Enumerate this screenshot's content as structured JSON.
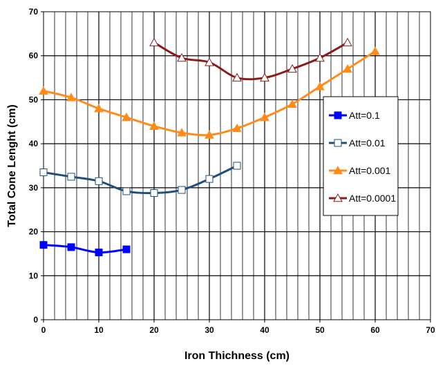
{
  "chart_data": {
    "type": "line",
    "xlabel": "Iron Thichness (cm)",
    "ylabel": "Total Cone Lenght (cm)",
    "xlim": [
      0,
      70
    ],
    "ylim": [
      0,
      70
    ],
    "x_ticks": [
      0,
      10,
      20,
      30,
      40,
      50,
      60,
      70
    ],
    "y_ticks": [
      0,
      10,
      20,
      30,
      40,
      50,
      60,
      70
    ],
    "grid": "major every 10 on y, minor vertical every 2 on x",
    "legend_position": "right",
    "series": [
      {
        "name": "Att=0.1",
        "color": "#0000ff",
        "marker": "filled-square",
        "x": [
          0,
          5,
          10,
          15
        ],
        "y": [
          17,
          16.5,
          15.3,
          16
        ]
      },
      {
        "name": "Att=0.01",
        "color": "#1f4e79",
        "marker": "open-square",
        "x": [
          0,
          5,
          10,
          15,
          20,
          25,
          30,
          35
        ],
        "y": [
          33.5,
          32.5,
          31.5,
          29.2,
          28.8,
          29.5,
          32,
          35
        ]
      },
      {
        "name": "Att=0.001",
        "color": "#ff8c1a",
        "marker": "filled-triangle",
        "x": [
          0,
          5,
          10,
          15,
          20,
          25,
          30,
          35,
          40,
          45,
          50,
          55,
          60
        ],
        "y": [
          52,
          50.5,
          48,
          46,
          44,
          42.5,
          42,
          43.5,
          46,
          49,
          53,
          57,
          61
        ]
      },
      {
        "name": "Att=0.0001",
        "color": "#8b1a1a",
        "marker": "open-triangle",
        "x": [
          20,
          25,
          30,
          35,
          40,
          45,
          50,
          55
        ],
        "y": [
          63,
          59.5,
          58.5,
          55,
          55,
          57,
          59.5,
          63
        ]
      }
    ]
  }
}
